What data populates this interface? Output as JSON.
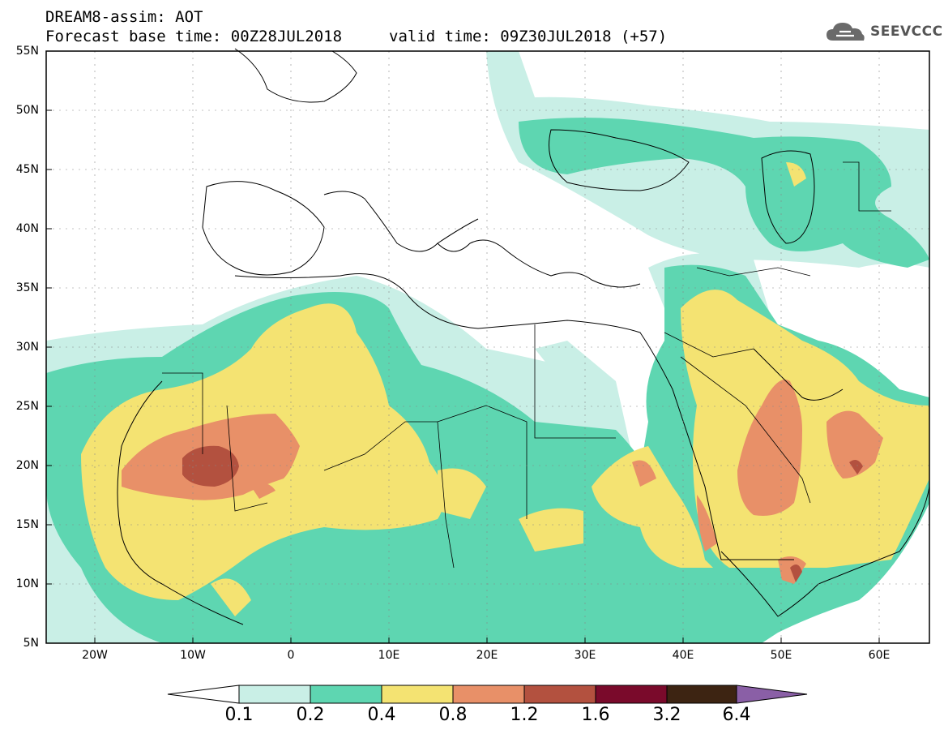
{
  "header": {
    "title": "DREAM8-assim: AOT",
    "base_time": "Forecast base time: 00Z28JUL2018",
    "valid_time": "valid time: 09Z30JUL2018 (+57)"
  },
  "logo": {
    "text": "SEEVCCC",
    "icon": "cloud-icon"
  },
  "map": {
    "lat_labels": [
      "55N",
      "50N",
      "45N",
      "40N",
      "35N",
      "30N",
      "25N",
      "20N",
      "15N",
      "10N",
      "5N"
    ],
    "lon_labels": [
      "20W",
      "10W",
      "0",
      "10E",
      "20E",
      "30E",
      "40E",
      "50E",
      "60E"
    ],
    "extent": {
      "lon": [
        -25,
        65
      ],
      "lat": [
        5,
        55
      ]
    }
  },
  "colorbar": {
    "labels": [
      "0.1",
      "0.2",
      "0.4",
      "0.8",
      "1.2",
      "1.6",
      "3.2",
      "6.4"
    ],
    "colors": [
      "#c9efe6",
      "#5ed6b1",
      "#f4e372",
      "#e89068",
      "#b3513f",
      "#7a0a2b",
      "#3d2412",
      "#8a5fa6"
    ]
  }
}
